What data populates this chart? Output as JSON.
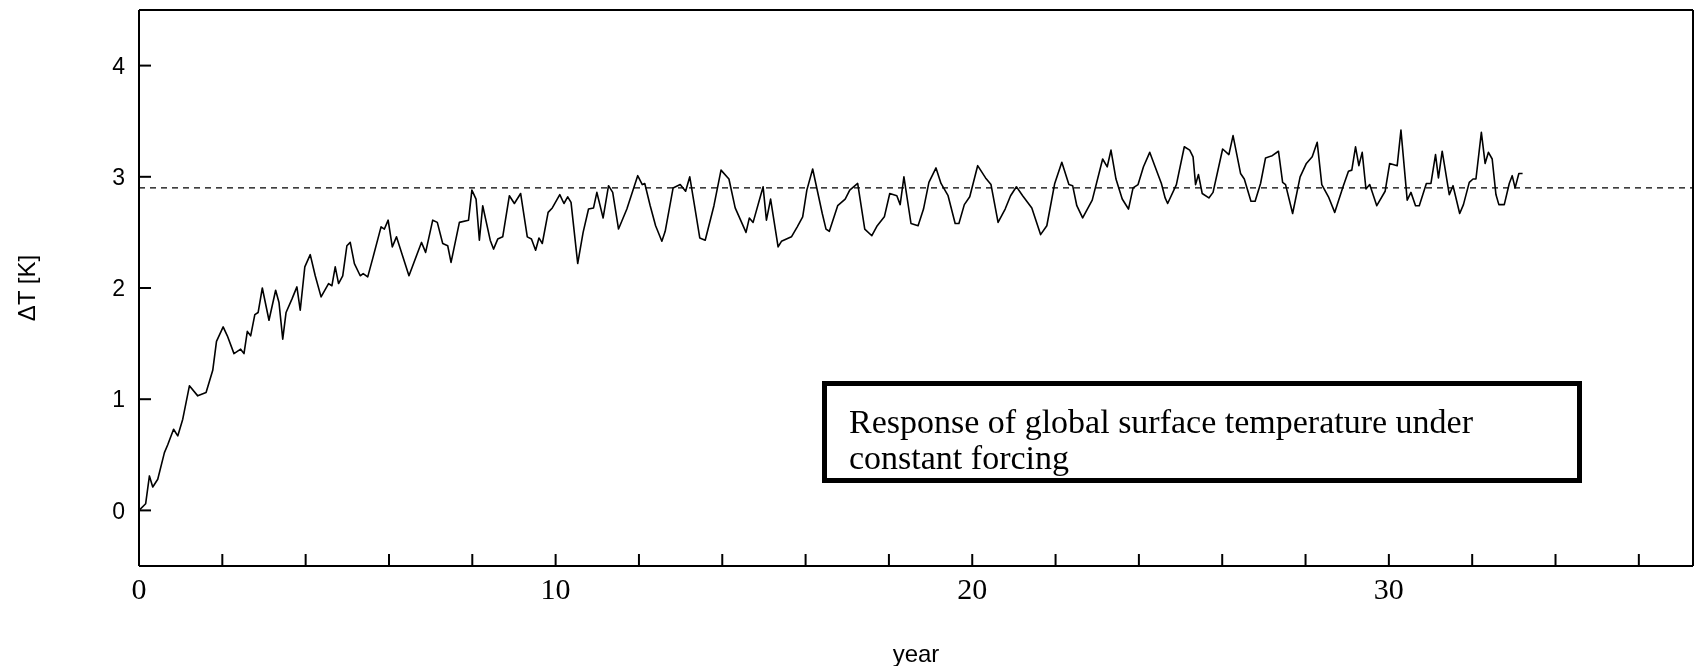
{
  "chart_data": {
    "type": "line",
    "xlabel": "year",
    "ylabel": "ΔT [K]",
    "xlim": [
      0,
      37.3
    ],
    "ylim": [
      -0.5,
      4.5
    ],
    "xticks": [
      0,
      {
        "value": 2,
        "label": null
      },
      {
        "value": 4,
        "label": null
      },
      {
        "value": 6,
        "label": null
      },
      {
        "value": 8,
        "label": null
      },
      10,
      {
        "value": 12,
        "label": null
      },
      {
        "value": 14,
        "label": null
      },
      {
        "value": 16,
        "label": null
      },
      {
        "value": 18,
        "label": null
      },
      20,
      {
        "value": 22,
        "label": null
      },
      {
        "value": 24,
        "label": null
      },
      {
        "value": 26,
        "label": null
      },
      {
        "value": 28,
        "label": null
      },
      30,
      {
        "value": 32,
        "label": null
      },
      {
        "value": 34,
        "label": null
      },
      {
        "value": 36,
        "label": null
      }
    ],
    "yticks": [
      0,
      1,
      2,
      3,
      4
    ],
    "marker": "none",
    "line_style": "solid",
    "ref_lines": [
      {
        "axis": "y",
        "value": 2.9,
        "label": null,
        "color": "#000000",
        "line_style": "dashed"
      }
    ],
    "annotations": [
      "Response of global surface temperature under constant forcing"
    ],
    "series": [
      {
        "color": "#000000",
        "x": [
          0,
          0.16,
          0.25,
          0.33,
          0.45,
          0.61,
          0.69,
          0.83,
          0.93,
          1.05,
          1.21,
          1.41,
          1.61,
          1.77,
          1.86,
          2.02,
          2.12,
          2.28,
          2.44,
          2.52,
          2.6,
          2.68,
          2.78,
          2.86,
          2.96,
          3.12,
          3.28,
          3.36,
          3.45,
          3.53,
          3.67,
          3.79,
          3.87,
          3.98,
          4.11,
          4.23,
          4.37,
          4.55,
          4.63,
          4.71,
          4.79,
          4.89,
          4.99,
          5.07,
          5.17,
          5.31,
          5.38,
          5.49,
          5.62,
          5.81,
          5.89,
          5.98,
          6.08,
          6.18,
          6.48,
          6.78,
          6.88,
          7.05,
          7.16,
          7.29,
          7.41,
          7.49,
          7.69,
          7.91,
          7.99,
          8.09,
          8.17,
          8.25,
          8.43,
          8.51,
          8.61,
          8.73,
          8.89,
          9.01,
          9.16,
          9.32,
          9.42,
          9.52,
          9.6,
          9.68,
          9.82,
          9.92,
          10.1,
          10.2,
          10.29,
          10.37,
          10.53,
          10.66,
          10.79,
          10.91,
          10.99,
          11.14,
          11.27,
          11.37,
          11.51,
          11.71,
          11.97,
          12.08,
          12.14,
          12.27,
          12.4,
          12.55,
          12.63,
          12.82,
          12.99,
          13.12,
          13.22,
          13.33,
          13.46,
          13.59,
          13.8,
          13.97,
          14.16,
          14.31,
          14.57,
          14.65,
          14.74,
          14.98,
          15.06,
          15.16,
          15.34,
          15.42,
          15.66,
          15.8,
          15.93,
          16.03,
          16.17,
          16.4,
          16.49,
          16.57,
          16.77,
          16.95,
          17.06,
          17.25,
          17.42,
          17.59,
          17.72,
          17.89,
          18.02,
          18.19,
          18.27,
          18.36,
          18.53,
          18.7,
          18.83,
          18.96,
          19.13,
          19.25,
          19.42,
          19.59,
          19.68,
          19.81,
          19.94,
          20.13,
          20.32,
          20.45,
          20.62,
          20.79,
          20.92,
          21.06,
          21.21,
          21.43,
          21.64,
          21.79,
          21.98,
          22.15,
          22.32,
          22.41,
          22.51,
          22.65,
          22.88,
          23.13,
          23.24,
          23.33,
          23.45,
          23.6,
          23.75,
          23.86,
          23.98,
          24.11,
          24.26,
          24.38,
          24.54,
          24.63,
          24.69,
          24.9,
          25.09,
          25.22,
          25.3,
          25.36,
          25.43,
          25.52,
          25.68,
          25.78,
          26.01,
          26.16,
          26.26,
          26.44,
          26.53,
          26.69,
          26.79,
          26.92,
          27.04,
          27.2,
          27.35,
          27.45,
          27.52,
          27.69,
          27.87,
          28.02,
          28.16,
          28.28,
          28.39,
          28.55,
          28.7,
          28.9,
          29.03,
          29.11,
          29.2,
          29.28,
          29.36,
          29.45,
          29.54,
          29.71,
          29.91,
          30.02,
          30.2,
          30.29,
          30.44,
          30.53,
          30.64,
          30.73,
          30.9,
          31.01,
          31.12,
          31.19,
          31.28,
          31.45,
          31.54,
          31.7,
          31.79,
          31.93,
          32.02,
          32.09,
          32.22,
          32.31,
          32.39,
          32.48,
          32.57,
          32.64,
          32.77,
          32.89,
          32.96,
          33.03,
          33.12,
          33.21
        ],
        "values": [
          0,
          0.06,
          0.31,
          0.21,
          0.28,
          0.52,
          0.59,
          0.73,
          0.67,
          0.82,
          1.12,
          1.03,
          1.06,
          1.26,
          1.52,
          1.65,
          1.57,
          1.41,
          1.45,
          1.41,
          1.61,
          1.57,
          1.76,
          1.78,
          2,
          1.71,
          1.98,
          1.87,
          1.54,
          1.78,
          1.9,
          2.01,
          1.8,
          2.19,
          2.3,
          2.11,
          1.92,
          2.04,
          2.02,
          2.19,
          2.04,
          2.11,
          2.38,
          2.41,
          2.22,
          2.11,
          2.13,
          2.1,
          2.28,
          2.55,
          2.53,
          2.61,
          2.37,
          2.46,
          2.11,
          2.41,
          2.32,
          2.61,
          2.59,
          2.4,
          2.38,
          2.23,
          2.59,
          2.61,
          2.88,
          2.8,
          2.43,
          2.74,
          2.43,
          2.35,
          2.44,
          2.46,
          2.83,
          2.76,
          2.85,
          2.46,
          2.44,
          2.34,
          2.45,
          2.4,
          2.68,
          2.72,
          2.84,
          2.76,
          2.82,
          2.77,
          2.22,
          2.5,
          2.71,
          2.72,
          2.86,
          2.63,
          2.92,
          2.86,
          2.53,
          2.71,
          3.01,
          2.93,
          2.94,
          2.74,
          2.56,
          2.42,
          2.51,
          2.9,
          2.93,
          2.87,
          3,
          2.75,
          2.45,
          2.43,
          2.74,
          3.06,
          2.98,
          2.72,
          2.5,
          2.63,
          2.59,
          2.91,
          2.61,
          2.8,
          2.37,
          2.42,
          2.46,
          2.55,
          2.64,
          2.88,
          3.07,
          2.67,
          2.53,
          2.51,
          2.74,
          2.8,
          2.88,
          2.94,
          2.53,
          2.47,
          2.56,
          2.64,
          2.85,
          2.83,
          2.75,
          3,
          2.58,
          2.56,
          2.71,
          2.95,
          3.08,
          2.94,
          2.83,
          2.58,
          2.58,
          2.75,
          2.82,
          3.1,
          2.99,
          2.93,
          2.59,
          2.71,
          2.83,
          2.91,
          2.83,
          2.72,
          2.48,
          2.56,
          2.94,
          3.13,
          2.93,
          2.92,
          2.74,
          2.63,
          2.79,
          3.16,
          3.09,
          3.24,
          2.98,
          2.8,
          2.71,
          2.9,
          2.93,
          3.09,
          3.22,
          3.1,
          2.94,
          2.81,
          2.76,
          2.93,
          3.27,
          3.24,
          3.18,
          2.93,
          3.02,
          2.85,
          2.81,
          2.86,
          3.25,
          3.2,
          3.37,
          3.03,
          2.98,
          2.78,
          2.78,
          2.94,
          3.17,
          3.19,
          3.23,
          2.95,
          2.93,
          2.67,
          3,
          3.12,
          3.18,
          3.31,
          2.93,
          2.82,
          2.68,
          2.91,
          3.05,
          3.06,
          3.27,
          3.1,
          3.22,
          2.89,
          2.93,
          2.74,
          2.87,
          3.12,
          3.1,
          3.42,
          2.79,
          2.86,
          2.74,
          2.74,
          2.94,
          2.94,
          3.2,
          2.99,
          3.23,
          2.84,
          2.92,
          2.67,
          2.75,
          2.95,
          2.98,
          2.98,
          3.4,
          3.12,
          3.22,
          3.16,
          2.84,
          2.75,
          2.75,
          2.94,
          3.01,
          2.9,
          3.03,
          3.03
        ]
      }
    ]
  }
}
